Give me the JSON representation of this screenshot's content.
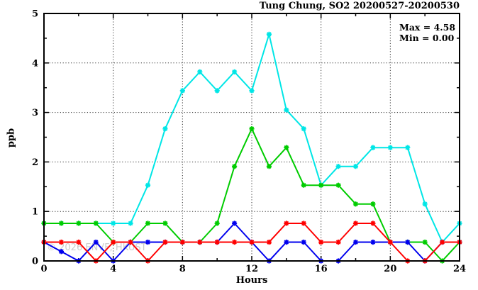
{
  "chart_data": {
    "type": "line",
    "title": "Tung Chung, SO2 20200527-20200530",
    "xlabel": "Hours",
    "ylabel": "ppb",
    "xlim": [
      0,
      24
    ],
    "ylim": [
      0,
      5
    ],
    "xticks": [
      0,
      4,
      8,
      12,
      16,
      20,
      24
    ],
    "x_minor_ticks": [
      2,
      6,
      10,
      14,
      18,
      22
    ],
    "yticks": [
      0,
      1,
      2,
      3,
      4,
      5
    ],
    "y_minor_ticks": [
      0.5,
      1.5,
      2.5,
      3.5,
      4.5
    ],
    "grid": {
      "style": "dotted",
      "x_at": [
        4,
        8,
        12,
        16,
        20
      ],
      "y_at": [
        1,
        2,
        3,
        4
      ]
    },
    "max": 4.58,
    "min": 0.0,
    "annotation": {
      "max_label": "Max = 4.58",
      "min_label": "Min = 0.00"
    },
    "watermark": "© 2026 ENVF, HKUST",
    "x": [
      0,
      1,
      2,
      3,
      4,
      5,
      6,
      7,
      8,
      9,
      10,
      11,
      12,
      13,
      14,
      15,
      16,
      17,
      18,
      19,
      20,
      21,
      22,
      23,
      24
    ],
    "series": [
      {
        "name": "cyan-line",
        "color": "#00e6e6",
        "values": [
          0.76,
          0.76,
          0.76,
          0.76,
          0.76,
          0.76,
          1.53,
          2.67,
          3.44,
          3.82,
          3.44,
          3.82,
          3.44,
          4.58,
          3.05,
          2.67,
          1.53,
          1.91,
          1.91,
          2.29,
          2.29,
          2.29,
          1.15,
          0.38,
          0.76
        ]
      },
      {
        "name": "green-line",
        "color": "#00cc00",
        "values": [
          0.76,
          0.76,
          0.76,
          0.76,
          0.38,
          0.38,
          0.76,
          0.76,
          0.38,
          0.38,
          0.76,
          1.91,
          2.67,
          1.91,
          2.29,
          1.53,
          1.53,
          1.53,
          1.15,
          1.15,
          0.38,
          0.38,
          0.38,
          0.0,
          0.38
        ]
      },
      {
        "name": "blue-line",
        "color": "#0000ee",
        "values": [
          0.38,
          0.19,
          0.0,
          0.38,
          0.0,
          0.38,
          0.38,
          0.38,
          0.38,
          0.38,
          0.38,
          0.76,
          0.38,
          0.0,
          0.38,
          0.38,
          0.0,
          0.0,
          0.38,
          0.38,
          0.38,
          0.38,
          0.0,
          0.38,
          0.38
        ]
      },
      {
        "name": "red-line",
        "color": "#ff0000",
        "values": [
          0.38,
          0.38,
          0.38,
          0.0,
          0.38,
          0.38,
          0.0,
          0.38,
          0.38,
          0.38,
          0.38,
          0.38,
          0.38,
          0.38,
          0.76,
          0.76,
          0.38,
          0.38,
          0.76,
          0.76,
          0.38,
          0.0,
          0.0,
          0.38,
          0.38
        ]
      }
    ],
    "layout": {
      "plot_left": 62,
      "plot_right": 648,
      "plot_top": 19,
      "plot_bottom": 368,
      "axis_color": "#000000",
      "grid_color": "#303030",
      "background": "#ffffff"
    }
  }
}
